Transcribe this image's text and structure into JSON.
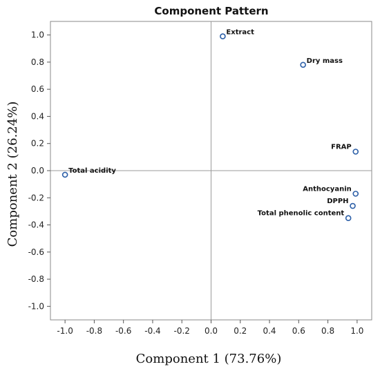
{
  "chart_data": {
    "type": "scatter",
    "title": "Component Pattern",
    "xlabel": "Component 1 (73.76%)",
    "ylabel": "Component 2 (26.24%)",
    "xlim": [
      -1.1,
      1.1
    ],
    "ylim": [
      -1.1,
      1.1
    ],
    "xticks": [
      "-1.0",
      "-0.8",
      "-0.6",
      "-0.4",
      "-0.2",
      "0.0",
      "0.2",
      "0.4",
      "0.6",
      "0.8",
      "1.0"
    ],
    "yticks": [
      "1.0",
      "0.8",
      "0.6",
      "0.4",
      "0.2",
      "0.0",
      "-0.2",
      "-0.4",
      "-0.6",
      "-0.8",
      "-1.0"
    ],
    "reference_lines": {
      "x": 0,
      "y": 0
    },
    "grid": false,
    "marker_color": "#2b5ea7",
    "points": [
      {
        "label": "Extract",
        "x": 0.08,
        "y": 0.99
      },
      {
        "label": "Dry mass",
        "x": 0.63,
        "y": 0.78
      },
      {
        "label": "FRAP",
        "x": 0.99,
        "y": 0.14
      },
      {
        "label": "Total acidity",
        "x": -1.0,
        "y": -0.03
      },
      {
        "label": "Anthocyanin",
        "x": 0.99,
        "y": -0.17
      },
      {
        "label": "DPPH",
        "x": 0.97,
        "y": -0.26
      },
      {
        "label": "Total phenolic content",
        "x": 0.94,
        "y": -0.35
      }
    ]
  }
}
